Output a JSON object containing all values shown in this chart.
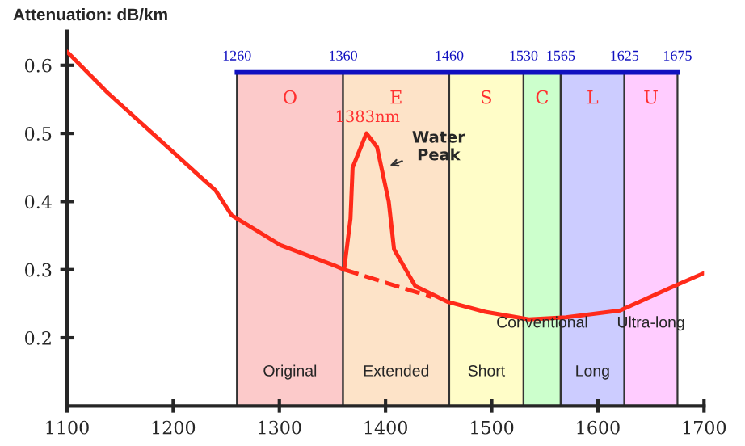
{
  "chart_data": {
    "type": "line",
    "ylabel": "Attenuation: dB/km",
    "xlim": [
      1100,
      1700
    ],
    "xticks": [
      1100,
      1200,
      1300,
      1400,
      1500,
      1600,
      1700
    ],
    "ylim": [
      0.1,
      0.65
    ],
    "yticks": [
      0.2,
      0.3,
      0.4,
      0.5,
      0.6
    ],
    "x2lim": [
      1100,
      1700
    ],
    "x2ticks": [
      1260,
      1360,
      1460,
      1530,
      1565,
      1625,
      1675
    ],
    "series": [
      {
        "color": "#ff2a1a",
        "line_style": "solid",
        "x": [
          1100,
          1138,
          1189,
          1240,
          1255,
          1301,
          1352,
          1361,
          1367,
          1369,
          1382,
          1392,
          1403,
          1408,
          1428,
          1458,
          1494,
          1535,
          1570,
          1621,
          1672,
          1700
        ],
        "values": [
          0.62,
          0.56,
          0.488,
          0.416,
          0.38,
          0.336,
          0.306,
          0.3,
          0.375,
          0.45,
          0.5,
          0.48,
          0.4,
          0.33,
          0.276,
          0.253,
          0.238,
          0.227,
          0.23,
          0.24,
          0.276,
          0.295
        ]
      },
      {
        "color": "#ff2a1a",
        "line_style": "dashed",
        "x": [
          1361,
          1443
        ],
        "values": [
          0.3,
          0.26
        ]
      }
    ],
    "bands": [
      {
        "axis": "x",
        "from": 1260,
        "to": 1360,
        "label": "O",
        "color": "#fccaca"
      },
      {
        "axis": "x",
        "from": 1360,
        "to": 1460,
        "label": "E",
        "color": "#fde3c8"
      },
      {
        "axis": "x",
        "from": 1460,
        "to": 1530,
        "label": "S",
        "color": "#fffdc8"
      },
      {
        "axis": "x",
        "from": 1530,
        "to": 1565,
        "label": "C",
        "color": "#ccffcc"
      },
      {
        "axis": "x",
        "from": 1565,
        "to": 1625,
        "label": "L",
        "color": "#ccccff"
      },
      {
        "axis": "x",
        "from": 1625,
        "to": 1675,
        "label": "U",
        "color": "#ffccff"
      }
    ],
    "annotations": [
      {
        "text": "1383nm",
        "x": 1383,
        "y": 0.5
      },
      {
        "text": "Water Peak",
        "x": 1400,
        "y": 0.45
      },
      "Original",
      "Extended",
      "Short",
      "Conventional",
      "Long",
      "Ultra-long"
    ],
    "grid": false,
    "legend": false,
    "marker": "none"
  }
}
